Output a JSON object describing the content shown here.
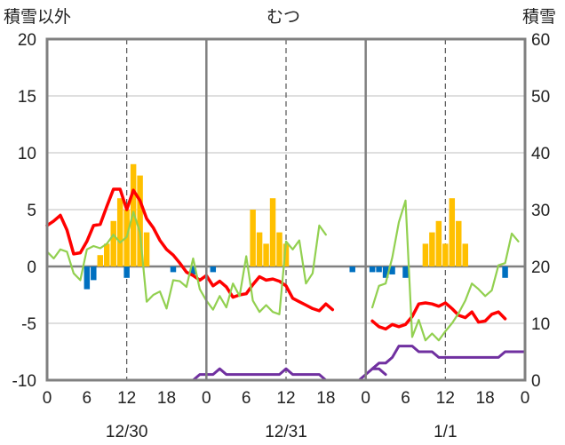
{
  "chart_data": {
    "type": "bar+line",
    "title": "むつ",
    "left_axis_label": "積雪以外",
    "right_axis_label": "積雪",
    "left_ylim": [
      -10,
      20
    ],
    "left_ticks": [
      "20",
      "15",
      "10",
      "5",
      "0",
      "-5",
      "-10"
    ],
    "right_ylim": [
      0,
      60
    ],
    "right_ticks": [
      "60",
      "50",
      "40",
      "30",
      "20",
      "10",
      "0"
    ],
    "x_hour_ticks": [
      "0",
      "6",
      "12",
      "18",
      "0",
      "6",
      "12",
      "18",
      "0",
      "6",
      "12",
      "18",
      "0"
    ],
    "date_labels": [
      "12/30",
      "12/31",
      "1/1"
    ],
    "grid": "dashed vertical at 12:00; solid day separators",
    "colors": {
      "snowfall": "#FFC000",
      "precip": "#0070C0",
      "temperature": "#FF0000",
      "wind": "#92D050",
      "snow_depth": "#7030A0",
      "frame": "#808080"
    },
    "series": [
      {
        "key": "snowfall",
        "kind": "bar",
        "hours": [
          8,
          9,
          10,
          11,
          12,
          13,
          14,
          15,
          31,
          32,
          33,
          34,
          35,
          36,
          57,
          58,
          59,
          60,
          61,
          62,
          63
        ],
        "values": [
          1,
          2,
          4,
          6,
          5,
          9,
          8,
          3,
          5,
          3,
          2,
          6,
          3,
          2,
          2,
          3,
          4,
          2,
          6,
          4,
          2
        ]
      },
      {
        "key": "precip",
        "kind": "bar",
        "hours": [
          6,
          7,
          12,
          19,
          22,
          25,
          46,
          49,
          50,
          51,
          52,
          54,
          69
        ],
        "values": [
          -2,
          -1.2,
          -1,
          -0.5,
          -0.7,
          -0.5,
          -0.5,
          -0.5,
          -0.5,
          -1,
          -0.7,
          -1,
          -1
        ]
      },
      {
        "key": "temperature",
        "kind": "line",
        "segments": [
          {
            "start": 0,
            "values": [
              3.6,
              4.0,
              4.5,
              3.2,
              1.1,
              1.2,
              2.2,
              3.6,
              3.7,
              5.3,
              6.8,
              6.8,
              5.0,
              6.7,
              5.8,
              4.2,
              3.4,
              2.3,
              1.5,
              1.0,
              0.3,
              -0.5,
              -0.8,
              -1.2,
              -0.8,
              -1.7,
              -1.3,
              -1.8,
              -2.7,
              -2.5,
              -2.4,
              -1.6,
              -0.9,
              -1.2,
              -1.1,
              -1.3,
              -1.7,
              -2.8,
              -3.1,
              -3.4,
              -3.7,
              -3.9,
              -3.3,
              -3.8
            ]
          },
          {
            "start": 49,
            "values": [
              -4.8,
              -5.3,
              -5.5,
              -5.1,
              -5.3,
              -5.1,
              -4.4,
              -3.3,
              -3.2,
              -3.3,
              -3.5,
              -3.2,
              -3.7,
              -4.3,
              -4.5,
              -4.0,
              -4.9,
              -4.8,
              -4.2,
              -4.0,
              -4.6
            ]
          }
        ]
      },
      {
        "key": "wind",
        "kind": "line",
        "segments": [
          {
            "start": 0,
            "values": [
              1.3,
              0.7,
              1.5,
              1.3,
              -0.6,
              -1.2,
              1.5,
              1.8,
              1.6,
              2.0,
              2.8,
              2.1,
              2.6,
              4.8,
              3.0,
              -3.1,
              -2.5,
              -2.2,
              -3.7,
              -1.2,
              -1.3,
              -1.8,
              0.7,
              -2.0,
              -3.0,
              -3.8,
              -2.6,
              -3.6,
              -1.5,
              -2.6,
              0.9,
              -3.0,
              -4.0,
              -3.4,
              -4.0,
              -4.2,
              2.2,
              1.5,
              2.3,
              -1.5,
              -0.6,
              3.6,
              2.8
            ]
          },
          {
            "start": 49,
            "values": [
              -3.6,
              -1.7,
              -1.5,
              0.8,
              3.9,
              5.8,
              -6.2,
              -4.7,
              -6.5,
              -5.9,
              -6.5,
              -5.7,
              -5.0,
              -4.1,
              -3.0,
              -1.5,
              -2.0,
              -2.6,
              -2.1,
              0.1,
              0.3,
              2.9,
              2.2
            ]
          }
        ]
      },
      {
        "key": "snow_depth",
        "kind": "line",
        "axis": "right",
        "segments": [
          {
            "start": 0,
            "values": [
              0,
              0,
              0,
              0,
              0,
              0,
              0,
              0,
              0,
              0,
              0,
              0,
              0,
              0,
              0,
              0,
              0,
              0,
              0,
              0,
              0,
              0,
              0,
              1,
              1,
              1,
              2,
              1,
              1,
              1,
              1,
              1,
              1,
              1,
              1,
              1,
              2,
              1,
              1,
              1,
              1,
              1,
              0,
              0,
              0,
              0,
              0,
              0,
              1,
              2,
              2,
              1
            ]
          },
          {
            "start": 49,
            "values": [
              2,
              3,
              3,
              4,
              6,
              6,
              6,
              5,
              5,
              5,
              4,
              4,
              4,
              4,
              4,
              4,
              4,
              4,
              4,
              4,
              5,
              5,
              5,
              5
            ]
          }
        ]
      }
    ]
  }
}
